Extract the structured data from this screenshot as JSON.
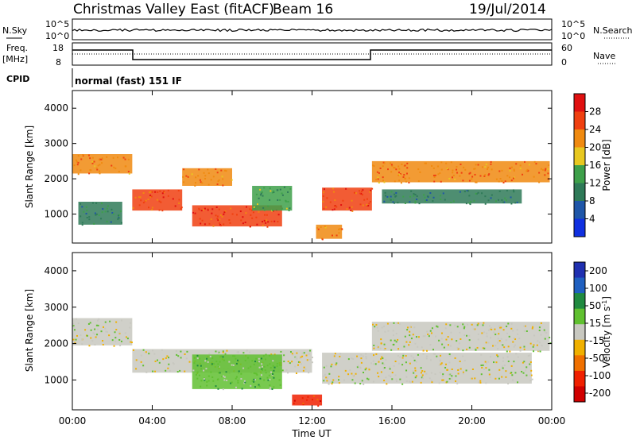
{
  "header": {
    "title": "Christmas Valley East (fitACF)",
    "beam": "Beam 16",
    "date": "19/Jul/2014"
  },
  "status_strips": {
    "nsky_label": "N.Sky",
    "nsearch_label": "N.Search",
    "noise_ticks": [
      "10^5",
      "10^0"
    ],
    "freq_label_line1": "Freq.",
    "freq_label_line2": "[MHz]",
    "freq_ticks": [
      "18",
      "8"
    ],
    "nave_label": "Nave",
    "nave_ticks": [
      "60",
      "0"
    ],
    "cpid_label": "CPID",
    "cpid_value": "normal (fast) 151 IF"
  },
  "colors": {
    "power_scale": [
      "#1030e0",
      "#1f56a8",
      "#2f7a58",
      "#3ea04a",
      "#e8c820",
      "#f08a10",
      "#f04010",
      "#e01010"
    ],
    "velocity_scale": [
      "#2030b0",
      "#2060c0",
      "#208a40",
      "#60c030",
      "#c8c8c0",
      "#f0b000",
      "#f07000",
      "#f02000",
      "#d00000"
    ]
  },
  "chart_data": [
    {
      "type": "heatmap",
      "panel": "power",
      "xlabel": "",
      "ylabel": "Slant Range [km]",
      "xlim": [
        "00:00",
        "24:00"
      ],
      "ylim": [
        180,
        4500
      ],
      "y_ticks": [
        1000,
        2000,
        3000,
        4000
      ],
      "colorbar": {
        "label": "Power [dB]",
        "ticks": [
          "4",
          "8",
          "12",
          "16",
          "20",
          "24",
          "28"
        ],
        "range": [
          0,
          30
        ]
      },
      "regions": [
        {
          "t0": 0.0,
          "t1": 3.0,
          "r0": 2150,
          "r1": 2700,
          "value": 22
        },
        {
          "t0": 0.3,
          "t1": 2.5,
          "r0": 700,
          "r1": 1350,
          "value": 10
        },
        {
          "t0": 3.0,
          "t1": 5.5,
          "r0": 1100,
          "r1": 1700,
          "value": 24
        },
        {
          "t0": 5.5,
          "t1": 8.0,
          "r0": 1800,
          "r1": 2300,
          "value": 22
        },
        {
          "t0": 6.0,
          "t1": 10.5,
          "r0": 650,
          "r1": 1250,
          "value": 25
        },
        {
          "t0": 9.0,
          "t1": 11.0,
          "r0": 1100,
          "r1": 1800,
          "value": 12
        },
        {
          "t0": 12.5,
          "t1": 15.0,
          "r0": 1100,
          "r1": 1750,
          "value": 24
        },
        {
          "t0": 12.2,
          "t1": 13.5,
          "r0": 300,
          "r1": 700,
          "value": 22
        },
        {
          "t0": 15.0,
          "t1": 23.9,
          "r0": 1900,
          "r1": 2500,
          "value": 22
        },
        {
          "t0": 15.5,
          "t1": 22.5,
          "r0": 1300,
          "r1": 1700,
          "value": 10
        }
      ]
    },
    {
      "type": "heatmap",
      "panel": "velocity",
      "xlabel": "Time UT",
      "ylabel": "Slant Range [km]",
      "x_ticks": [
        "00:00",
        "04:00",
        "08:00",
        "12:00",
        "16:00",
        "20:00",
        "00:00"
      ],
      "xlim": [
        "00:00",
        "24:00"
      ],
      "ylim": [
        180,
        4500
      ],
      "y_ticks": [
        1000,
        2000,
        3000,
        4000
      ],
      "colorbar": {
        "label": "Velocity [m s^-1]",
        "ticks": [
          "200",
          "100",
          "50",
          "15",
          "-15",
          "-50",
          "-100",
          "-200"
        ],
        "range": [
          -250,
          250
        ]
      },
      "regions": [
        {
          "t0": 0.0,
          "t1": 3.0,
          "r0": 1950,
          "r1": 2700,
          "value": 0
        },
        {
          "t0": 3.0,
          "t1": 12.0,
          "r0": 1200,
          "r1": 1850,
          "value": 0
        },
        {
          "t0": 6.0,
          "t1": 10.5,
          "r0": 750,
          "r1": 1700,
          "value": 60
        },
        {
          "t0": 15.0,
          "t1": 23.9,
          "r0": 1800,
          "r1": 2600,
          "value": 0
        },
        {
          "t0": 12.5,
          "t1": 23.0,
          "r0": 900,
          "r1": 1750,
          "value": 0
        },
        {
          "t0": 11.0,
          "t1": 12.5,
          "r0": 300,
          "r1": 600,
          "value": -150
        }
      ]
    }
  ]
}
